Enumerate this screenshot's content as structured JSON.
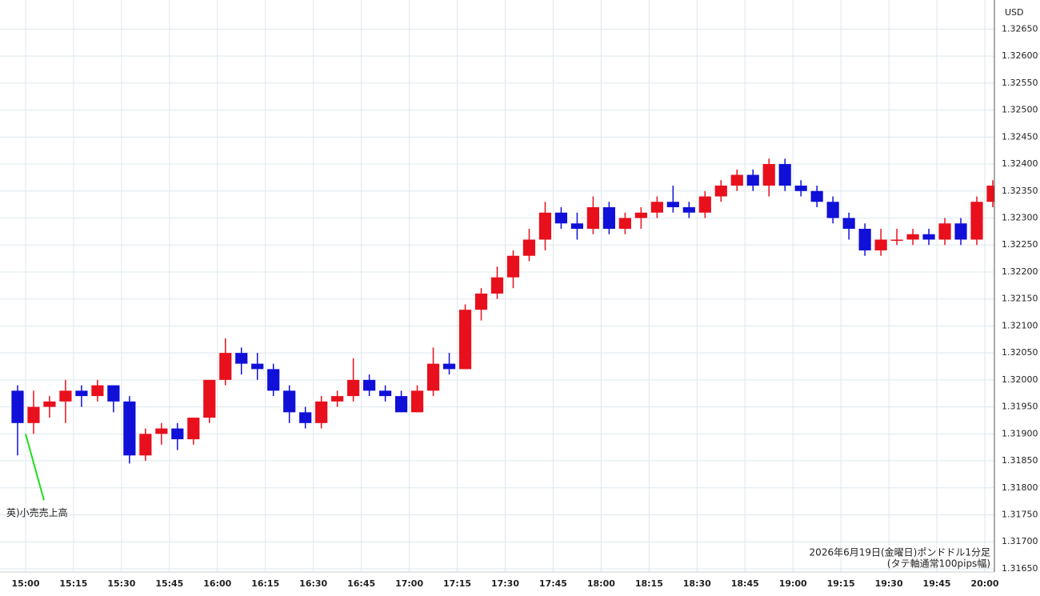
{
  "chart_data": {
    "type": "candlestick",
    "unit": "USD",
    "x": [
      "14:55",
      "15:00",
      "15:05",
      "15:10",
      "15:15",
      "15:20",
      "15:25",
      "15:30",
      "15:35",
      "15:40",
      "15:45",
      "15:50",
      "15:55",
      "16:00",
      "16:05",
      "16:10",
      "16:15",
      "16:20",
      "16:25",
      "16:30",
      "16:35",
      "16:40",
      "16:45",
      "16:50",
      "16:55",
      "17:00",
      "17:05",
      "17:10",
      "17:15",
      "17:20",
      "17:25",
      "17:30",
      "17:35",
      "17:40",
      "17:45",
      "17:50",
      "17:55",
      "18:00",
      "18:05",
      "18:10",
      "18:15",
      "18:20",
      "18:25",
      "18:30",
      "18:35",
      "18:40",
      "18:45",
      "18:50",
      "18:55",
      "19:00",
      "19:05",
      "19:10",
      "19:15",
      "19:20",
      "19:25",
      "19:30",
      "19:35",
      "19:40",
      "19:45",
      "19:50",
      "19:55",
      "20:00"
    ],
    "open": [
      1.3198,
      1.3192,
      1.3195,
      1.3196,
      1.3198,
      1.3197,
      1.3199,
      1.3196,
      1.3186,
      1.319,
      1.3191,
      1.3189,
      1.3193,
      1.32,
      1.3205,
      1.3203,
      1.3202,
      1.3198,
      1.3194,
      1.3192,
      1.3196,
      1.3197,
      1.32,
      1.3198,
      1.3197,
      1.3194,
      1.3198,
      1.3203,
      1.3202,
      1.3213,
      1.3216,
      1.3219,
      1.3223,
      1.3226,
      1.3231,
      1.3229,
      1.3228,
      1.3232,
      1.3228,
      1.323,
      1.3231,
      1.3233,
      1.3232,
      1.3231,
      1.3234,
      1.3236,
      1.3238,
      1.3236,
      1.324,
      1.3236,
      1.3235,
      1.3233,
      1.323,
      1.3228,
      1.3224,
      1.3226,
      1.3226,
      1.3227,
      1.3226,
      1.3229,
      1.3226,
      1.3233
    ],
    "high": [
      1.3199,
      1.3198,
      1.3197,
      1.32,
      1.3199,
      1.32,
      1.3199,
      1.3197,
      1.3191,
      1.3192,
      1.3192,
      1.3193,
      1.32,
      1.32077,
      1.3206,
      1.3205,
      1.3203,
      1.3199,
      1.3195,
      1.3197,
      1.3198,
      1.3204,
      1.3201,
      1.3199,
      1.3198,
      1.3199,
      1.3206,
      1.3205,
      1.3214,
      1.3217,
      1.3221,
      1.3224,
      1.3228,
      1.3233,
      1.3232,
      1.3231,
      1.3234,
      1.3233,
      1.3231,
      1.3232,
      1.3234,
      1.3236,
      1.3233,
      1.3235,
      1.3237,
      1.3239,
      1.3239,
      1.3241,
      1.3241,
      1.3237,
      1.3236,
      1.3234,
      1.3231,
      1.3229,
      1.3228,
      1.3228,
      1.3228,
      1.3228,
      1.323,
      1.323,
      1.3234,
      1.3237
    ],
    "low": [
      1.3186,
      1.319,
      1.3193,
      1.3192,
      1.3195,
      1.3196,
      1.3194,
      1.31845,
      1.3185,
      1.3188,
      1.3187,
      1.3188,
      1.3192,
      1.3199,
      1.3201,
      1.32,
      1.3197,
      1.3192,
      1.3191,
      1.3191,
      1.3195,
      1.3196,
      1.3197,
      1.3196,
      1.3194,
      1.3194,
      1.3197,
      1.3201,
      1.3202,
      1.3211,
      1.3215,
      1.3217,
      1.3222,
      1.3224,
      1.3228,
      1.3226,
      1.3227,
      1.3227,
      1.3227,
      1.3228,
      1.323,
      1.3231,
      1.323,
      1.323,
      1.3233,
      1.3235,
      1.3235,
      1.3234,
      1.3235,
      1.3234,
      1.3232,
      1.3229,
      1.3226,
      1.3223,
      1.3223,
      1.3225,
      1.3225,
      1.3225,
      1.3225,
      1.3225,
      1.3225,
      1.3232
    ],
    "close": [
      1.3192,
      1.3195,
      1.3196,
      1.3198,
      1.3197,
      1.3199,
      1.3196,
      1.3186,
      1.319,
      1.3191,
      1.3189,
      1.3193,
      1.32,
      1.3205,
      1.3203,
      1.3202,
      1.3198,
      1.3194,
      1.3192,
      1.3196,
      1.3197,
      1.32,
      1.3198,
      1.3197,
      1.3194,
      1.3198,
      1.3203,
      1.3202,
      1.3213,
      1.3216,
      1.3219,
      1.3223,
      1.3226,
      1.3231,
      1.3229,
      1.3228,
      1.3232,
      1.3228,
      1.323,
      1.3231,
      1.3233,
      1.3232,
      1.3231,
      1.3234,
      1.3236,
      1.3238,
      1.3236,
      1.324,
      1.3236,
      1.3235,
      1.3233,
      1.323,
      1.3228,
      1.3224,
      1.3226,
      1.3226,
      1.3227,
      1.3226,
      1.3229,
      1.3226,
      1.3233,
      1.3236
    ],
    "up_color": "#e8101c",
    "down_color": "#1010d8",
    "xlim": [
      "14:52",
      "20:03"
    ],
    "xticks": [
      "15:00",
      "15:15",
      "15:30",
      "15:45",
      "16:00",
      "16:15",
      "16:30",
      "16:45",
      "17:00",
      "17:15",
      "17:30",
      "17:45",
      "18:00",
      "18:15",
      "18:30",
      "18:45",
      "19:00",
      "19:15",
      "19:30",
      "19:45",
      "20:00"
    ],
    "ylim": [
      1.31644,
      1.32704
    ],
    "yticks": [
      {
        "value": 1.3165,
        "label": "1.31650"
      },
      {
        "value": 1.317,
        "label": "1.31700"
      },
      {
        "value": 1.3175,
        "label": "1.31750"
      },
      {
        "value": 1.318,
        "label": "1.31800"
      },
      {
        "value": 1.3185,
        "label": "1.31850"
      },
      {
        "value": 1.319,
        "label": "1.31900"
      },
      {
        "value": 1.3195,
        "label": "1.31950"
      },
      {
        "value": 1.32,
        "label": "1.32000"
      },
      {
        "value": 1.3205,
        "label": "1.32050"
      },
      {
        "value": 1.321,
        "label": "1.32100"
      },
      {
        "value": 1.3215,
        "label": "1.32150"
      },
      {
        "value": 1.322,
        "label": "1.32200"
      },
      {
        "value": 1.3225,
        "label": "1.32250"
      },
      {
        "value": 1.323,
        "label": "1.32300"
      },
      {
        "value": 1.3235,
        "label": "1.32350"
      },
      {
        "value": 1.324,
        "label": "1.32400"
      },
      {
        "value": 1.3245,
        "label": "1.32450"
      },
      {
        "value": 1.325,
        "label": "1.32500"
      },
      {
        "value": 1.3255,
        "label": "1.32550"
      },
      {
        "value": 1.326,
        "label": "1.32600"
      },
      {
        "value": 1.3265,
        "label": "1.32650"
      }
    ],
    "grid": true,
    "annotation": {
      "text": "英)小売売上高",
      "x": "15:00",
      "color": "#22dd22"
    },
    "footnote": [
      "2026年6月19日(金曜日)ポンドドル1分足",
      "(タテ軸通常100pips幅)"
    ]
  }
}
